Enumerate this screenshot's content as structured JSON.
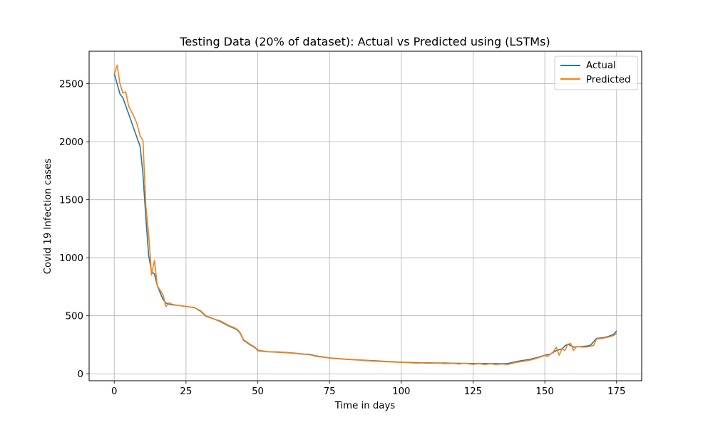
{
  "chart_data": {
    "type": "line",
    "title": "Testing Data (20% of dataset): Actual vs Predicted using (LSTMs)",
    "xlabel": "Time in days",
    "ylabel": "Covid 19 Infection cases",
    "xlim": [
      -8.75,
      183.75
    ],
    "ylim": [
      -60,
      2780
    ],
    "xticks": [
      0,
      25,
      50,
      75,
      100,
      125,
      150,
      175
    ],
    "yticks": [
      0,
      500,
      1000,
      1500,
      2000,
      2500
    ],
    "grid": true,
    "legend": "top-right",
    "series": [
      {
        "name": "Actual",
        "color": "#1f77b4",
        "points": [
          [
            0,
            2590
          ],
          [
            2,
            2410
          ],
          [
            3,
            2380
          ],
          [
            5,
            2240
          ],
          [
            7,
            2100
          ],
          [
            9,
            1960
          ],
          [
            10,
            1720
          ],
          [
            11,
            1350
          ],
          [
            12,
            1020
          ],
          [
            13,
            880
          ],
          [
            14,
            860
          ],
          [
            15,
            760
          ],
          [
            16,
            700
          ],
          [
            17,
            640
          ],
          [
            18,
            610
          ],
          [
            19,
            600
          ],
          [
            20,
            595
          ],
          [
            22,
            590
          ],
          [
            25,
            580
          ],
          [
            28,
            570
          ],
          [
            30,
            540
          ],
          [
            32,
            495
          ],
          [
            35,
            470
          ],
          [
            37,
            450
          ],
          [
            40,
            410
          ],
          [
            42,
            390
          ],
          [
            43,
            375
          ],
          [
            44,
            345
          ],
          [
            45,
            290
          ],
          [
            47,
            255
          ],
          [
            49,
            225
          ],
          [
            50,
            200
          ],
          [
            53,
            190
          ],
          [
            57,
            188
          ],
          [
            62,
            180
          ],
          [
            66,
            170
          ],
          [
            68,
            168
          ],
          [
            70,
            155
          ],
          [
            75,
            137
          ],
          [
            80,
            127
          ],
          [
            85,
            120
          ],
          [
            90,
            113
          ],
          [
            95,
            106
          ],
          [
            100,
            100
          ],
          [
            105,
            96
          ],
          [
            110,
            94
          ],
          [
            115,
            92
          ],
          [
            120,
            90
          ],
          [
            125,
            88
          ],
          [
            130,
            88
          ],
          [
            135,
            87
          ],
          [
            137,
            88
          ],
          [
            140,
            105
          ],
          [
            145,
            125
          ],
          [
            148,
            145
          ],
          [
            150,
            160
          ],
          [
            152,
            170
          ],
          [
            154,
            200
          ],
          [
            156,
            215
          ],
          [
            157,
            240
          ],
          [
            158,
            255
          ],
          [
            160,
            230
          ],
          [
            163,
            235
          ],
          [
            165,
            240
          ],
          [
            166,
            248
          ],
          [
            168,
            305
          ],
          [
            170,
            310
          ],
          [
            172,
            320
          ],
          [
            174,
            340
          ],
          [
            175,
            370
          ]
        ]
      },
      {
        "name": "Predicted",
        "color": "#ff7f0e",
        "points": [
          [
            0,
            2580
          ],
          [
            1,
            2660
          ],
          [
            2,
            2500
          ],
          [
            3,
            2420
          ],
          [
            4,
            2430
          ],
          [
            5,
            2310
          ],
          [
            7,
            2210
          ],
          [
            8,
            2150
          ],
          [
            9,
            2050
          ],
          [
            10,
            2010
          ],
          [
            11,
            1450
          ],
          [
            12,
            1200
          ],
          [
            13,
            850
          ],
          [
            14,
            980
          ],
          [
            15,
            760
          ],
          [
            16,
            720
          ],
          [
            17,
            680
          ],
          [
            18,
            580
          ],
          [
            19,
            610
          ],
          [
            20,
            600
          ],
          [
            22,
            590
          ],
          [
            25,
            580
          ],
          [
            28,
            570
          ],
          [
            30,
            545
          ],
          [
            32,
            500
          ],
          [
            35,
            470
          ],
          [
            37,
            455
          ],
          [
            40,
            415
          ],
          [
            42,
            395
          ],
          [
            43,
            380
          ],
          [
            44,
            350
          ],
          [
            45,
            295
          ],
          [
            47,
            260
          ],
          [
            49,
            230
          ],
          [
            50,
            205
          ],
          [
            53,
            192
          ],
          [
            57,
            185
          ],
          [
            62,
            178
          ],
          [
            66,
            168
          ],
          [
            68,
            165
          ],
          [
            70,
            152
          ],
          [
            75,
            135
          ],
          [
            80,
            125
          ],
          [
            85,
            118
          ],
          [
            90,
            110
          ],
          [
            95,
            104
          ],
          [
            100,
            98
          ],
          [
            105,
            92
          ],
          [
            107,
            94
          ],
          [
            110,
            90
          ],
          [
            113,
            93
          ],
          [
            115,
            88
          ],
          [
            118,
            90
          ],
          [
            120,
            85
          ],
          [
            122,
            90
          ],
          [
            125,
            82
          ],
          [
            127,
            88
          ],
          [
            129,
            80
          ],
          [
            131,
            86
          ],
          [
            133,
            80
          ],
          [
            135,
            84
          ],
          [
            137,
            80
          ],
          [
            140,
            98
          ],
          [
            145,
            118
          ],
          [
            148,
            140
          ],
          [
            150,
            158
          ],
          [
            151,
            150
          ],
          [
            153,
            190
          ],
          [
            154,
            230
          ],
          [
            155,
            160
          ],
          [
            156,
            215
          ],
          [
            157,
            200
          ],
          [
            158,
            255
          ],
          [
            159,
            260
          ],
          [
            160,
            200
          ],
          [
            161,
            235
          ],
          [
            163,
            230
          ],
          [
            165,
            232
          ],
          [
            167,
            245
          ],
          [
            168,
            300
          ],
          [
            170,
            305
          ],
          [
            172,
            315
          ],
          [
            174,
            330
          ],
          [
            175,
            350
          ]
        ]
      }
    ]
  }
}
